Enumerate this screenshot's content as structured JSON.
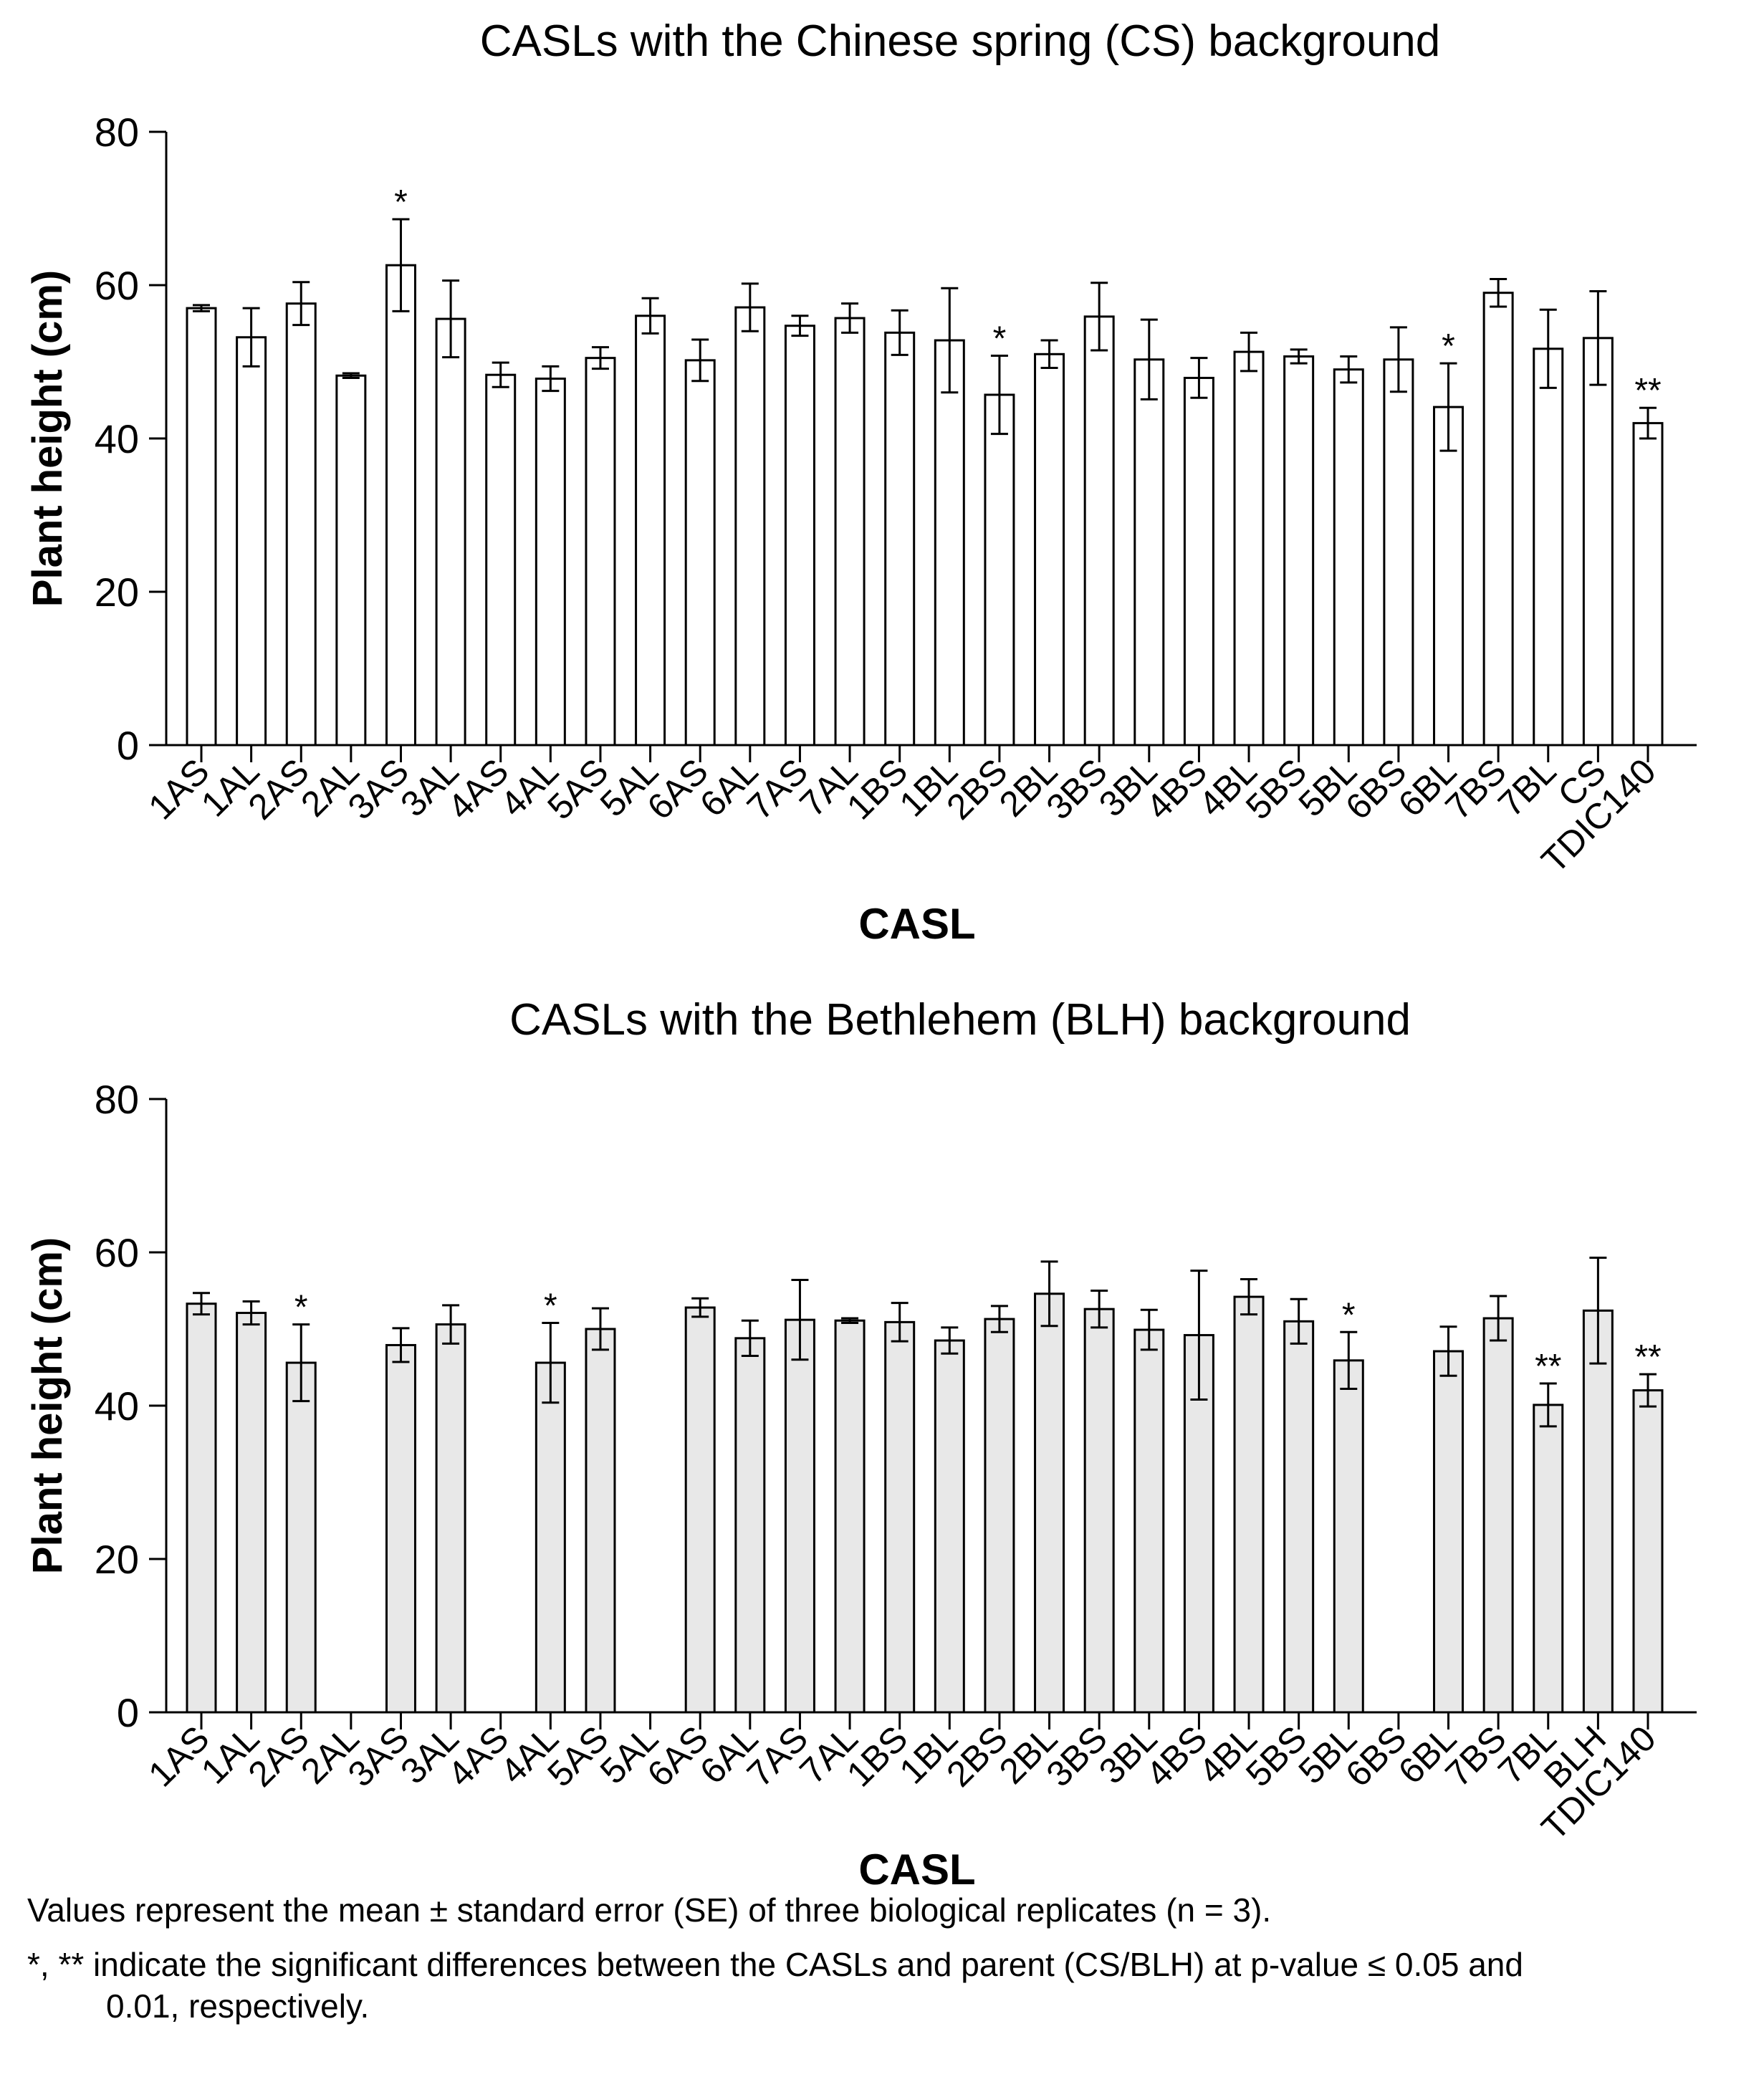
{
  "chart_data": [
    {
      "type": "bar",
      "title": "CASLs with the Chinese spring (CS) background",
      "xlabel": "CASL",
      "ylabel": "Plant height (cm)",
      "ylim": [
        0,
        80
      ],
      "yticks": [
        0,
        20,
        40,
        60,
        80
      ],
      "bar_color": "#ffffff",
      "categories": [
        "1AS",
        "1AL",
        "2AS",
        "2AL",
        "3AS",
        "3AL",
        "4AS",
        "4AL",
        "5AS",
        "5AL",
        "6AS",
        "6AL",
        "7AS",
        "7AL",
        "1BS",
        "1BL",
        "2BS",
        "2BL",
        "3BS",
        "3BL",
        "4BS",
        "4BL",
        "5BS",
        "5BL",
        "6BS",
        "6BL",
        "7BS",
        "7BL",
        "CS",
        "TDIC140"
      ],
      "values": [
        57.0,
        53.2,
        57.6,
        48.2,
        62.6,
        55.6,
        48.3,
        47.8,
        50.5,
        56.0,
        50.2,
        57.1,
        54.7,
        55.7,
        53.8,
        52.8,
        45.7,
        51.0,
        55.9,
        50.3,
        47.9,
        51.3,
        50.7,
        49.0,
        50.3,
        44.1,
        59.0,
        51.7,
        53.1,
        42.0
      ],
      "errors": [
        0.4,
        3.8,
        2.8,
        0.3,
        6.0,
        5.0,
        1.6,
        1.6,
        1.4,
        2.3,
        2.7,
        3.1,
        1.3,
        1.9,
        2.9,
        6.8,
        5.1,
        1.8,
        4.4,
        5.2,
        2.6,
        2.5,
        0.9,
        1.7,
        4.2,
        5.7,
        1.8,
        5.1,
        6.1,
        2.0
      ],
      "significance": [
        "",
        "",
        "",
        "",
        "*",
        "",
        "",
        "",
        "",
        "",
        "",
        "",
        "",
        "",
        "",
        "",
        "*",
        "",
        "",
        "",
        "",
        "",
        "",
        "",
        "",
        "*",
        "",
        "",
        "",
        "**"
      ]
    },
    {
      "type": "bar",
      "title": "CASLs with the Bethlehem (BLH) background",
      "xlabel": "CASL",
      "ylabel": "Plant height (cm)",
      "ylim": [
        0,
        80
      ],
      "yticks": [
        0,
        20,
        40,
        60,
        80
      ],
      "bar_color": "#e8e8e8",
      "categories": [
        "1AS",
        "1AL",
        "2AS",
        "2AL",
        "3AS",
        "3AL",
        "4AS",
        "4AL",
        "5AS",
        "5AL",
        "6AS",
        "6AL",
        "7AS",
        "7AL",
        "1BS",
        "1BL",
        "2BS",
        "2BL",
        "3BS",
        "3BL",
        "4BS",
        "4BL",
        "5BS",
        "5BL",
        "6BS",
        "6BL",
        "7BS",
        "7BL",
        "BLH",
        "TDIC140"
      ],
      "values": [
        53.3,
        52.1,
        45.6,
        null,
        47.9,
        50.6,
        null,
        45.6,
        50.0,
        null,
        52.8,
        48.8,
        51.2,
        51.1,
        50.9,
        48.5,
        51.3,
        54.6,
        52.6,
        49.9,
        49.2,
        54.2,
        51.0,
        45.9,
        null,
        47.1,
        51.4,
        40.1,
        52.4,
        42.0
      ],
      "errors": [
        1.4,
        1.5,
        5.0,
        null,
        2.2,
        2.5,
        null,
        5.2,
        2.7,
        null,
        1.2,
        2.3,
        5.2,
        0.3,
        2.5,
        1.7,
        1.7,
        4.2,
        2.4,
        2.6,
        8.4,
        2.3,
        2.9,
        3.7,
        null,
        3.2,
        2.9,
        2.8,
        6.9,
        2.1
      ],
      "significance": [
        "",
        "",
        "*",
        "",
        "",
        "",
        "",
        "*",
        "",
        "",
        "",
        "",
        "",
        "",
        "",
        "",
        "",
        "",
        "",
        "",
        "",
        "",
        "",
        "*",
        "",
        "",
        "",
        "**",
        "",
        "**"
      ]
    }
  ],
  "footnotes": {
    "line1": "Values represent the mean ± standard error (SE) of three biological replicates (n = 3).",
    "line2": "*, ** indicate the significant differences between the CASLs and parent (CS/BLH) at p-value ≤ 0.05 and",
    "line3": "0.01, respectively."
  }
}
